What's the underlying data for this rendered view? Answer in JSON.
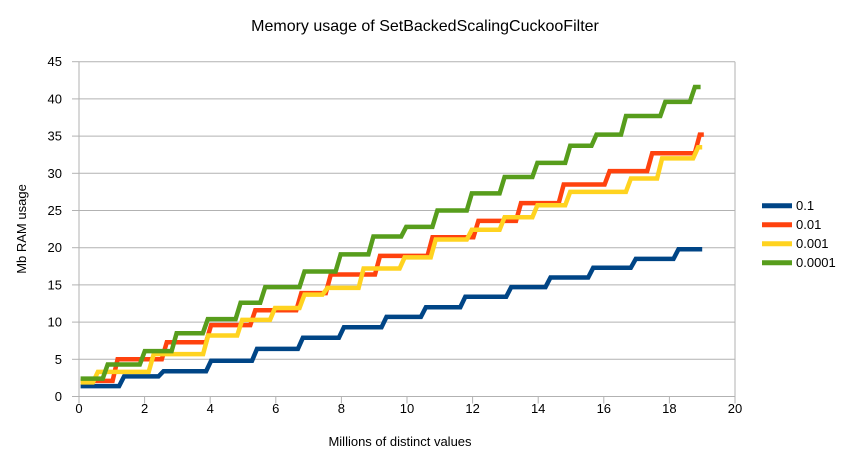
{
  "chart_data": {
    "type": "line",
    "title": "Memory usage of SetBackedScalingCuckooFilter",
    "xlabel": "Millions of distinct values",
    "ylabel": "Mb RAM usage",
    "xlim": [
      0,
      20
    ],
    "ylim": [
      0,
      45
    ],
    "x_tick_step": 2,
    "y_tick_step": 5,
    "grid": "horizontal",
    "legend_position": "right",
    "line_shape": "step",
    "series": [
      {
        "name": "0.1",
        "color": "#004586",
        "end_x": 19.0,
        "plateaus": [
          [
            0.05,
            1.4
          ],
          [
            1.3,
            2.7
          ],
          [
            2.5,
            3.4
          ],
          [
            3.95,
            4.8
          ],
          [
            5.35,
            6.4
          ],
          [
            6.75,
            7.9
          ],
          [
            8.0,
            9.3
          ],
          [
            9.3,
            10.7
          ],
          [
            10.5,
            12.0
          ],
          [
            11.7,
            13.4
          ],
          [
            13.1,
            14.7
          ],
          [
            14.3,
            16.0
          ],
          [
            15.6,
            17.3
          ],
          [
            16.9,
            18.5
          ],
          [
            18.2,
            19.8
          ]
        ]
      },
      {
        "name": "0.01",
        "color": "#ff420e",
        "end_x": 19.05,
        "plateaus": [
          [
            0.05,
            2.1
          ],
          [
            1.1,
            5.0
          ],
          [
            2.6,
            7.3
          ],
          [
            3.95,
            9.6
          ],
          [
            5.3,
            11.6
          ],
          [
            6.7,
            13.9
          ],
          [
            7.6,
            16.4
          ],
          [
            9.1,
            18.9
          ],
          [
            10.7,
            21.4
          ],
          [
            12.1,
            23.6
          ],
          [
            13.4,
            26.0
          ],
          [
            14.7,
            28.5
          ],
          [
            16.1,
            30.3
          ],
          [
            17.4,
            32.7
          ],
          [
            18.85,
            35.2
          ]
        ]
      },
      {
        "name": "0.001",
        "color": "#ffd320",
        "end_x": 19.0,
        "plateaus": [
          [
            0.05,
            1.9
          ],
          [
            0.5,
            3.3
          ],
          [
            2.2,
            5.7
          ],
          [
            3.86,
            8.2
          ],
          [
            4.9,
            10.3
          ],
          [
            5.9,
            11.9
          ],
          [
            6.8,
            13.7
          ],
          [
            7.5,
            14.6
          ],
          [
            8.6,
            17.2
          ],
          [
            9.85,
            18.7
          ],
          [
            10.8,
            21.1
          ],
          [
            11.9,
            22.4
          ],
          [
            12.9,
            24.1
          ],
          [
            13.9,
            25.7
          ],
          [
            14.9,
            27.5
          ],
          [
            16.75,
            29.3
          ],
          [
            17.7,
            32.0
          ],
          [
            18.8,
            33.5
          ]
        ]
      },
      {
        "name": "0.0001",
        "color": "#579d1c",
        "end_x": 18.95,
        "plateaus": [
          [
            0.05,
            2.4
          ],
          [
            0.8,
            4.3
          ],
          [
            1.93,
            6.1
          ],
          [
            2.9,
            8.5
          ],
          [
            3.85,
            10.4
          ],
          [
            4.85,
            12.6
          ],
          [
            5.6,
            14.7
          ],
          [
            6.8,
            16.8
          ],
          [
            7.9,
            19.1
          ],
          [
            8.9,
            21.5
          ],
          [
            9.9,
            22.8
          ],
          [
            10.85,
            25.0
          ],
          [
            11.9,
            27.3
          ],
          [
            12.9,
            29.5
          ],
          [
            13.9,
            31.4
          ],
          [
            14.9,
            33.7
          ],
          [
            15.7,
            35.2
          ],
          [
            16.6,
            37.7
          ],
          [
            17.8,
            39.6
          ],
          [
            18.7,
            41.6
          ]
        ]
      }
    ]
  },
  "styles": {
    "grid_color": "#b2b2b2",
    "text_color": "#000000",
    "background": "#ffffff"
  }
}
